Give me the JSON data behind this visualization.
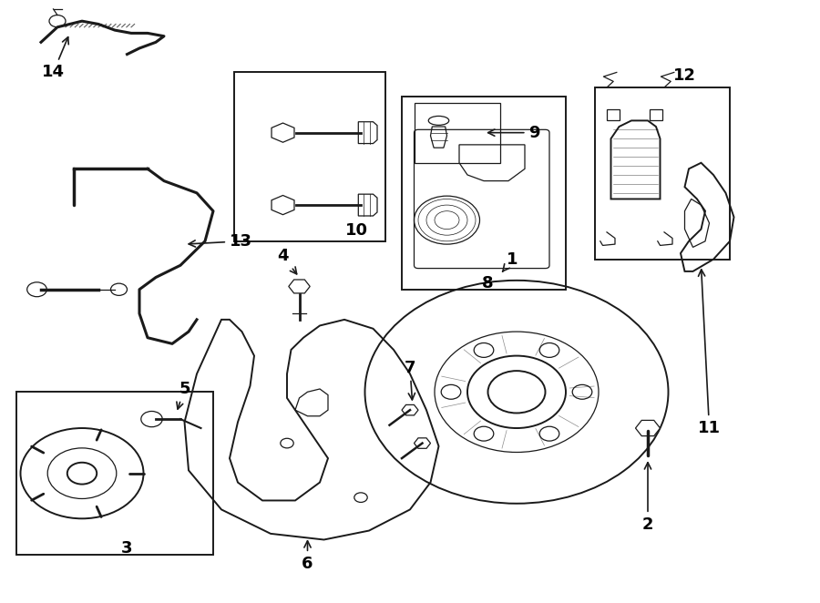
{
  "bg_color": "#ffffff",
  "line_color": "#1a1a1a",
  "label_color": "#000000"
}
